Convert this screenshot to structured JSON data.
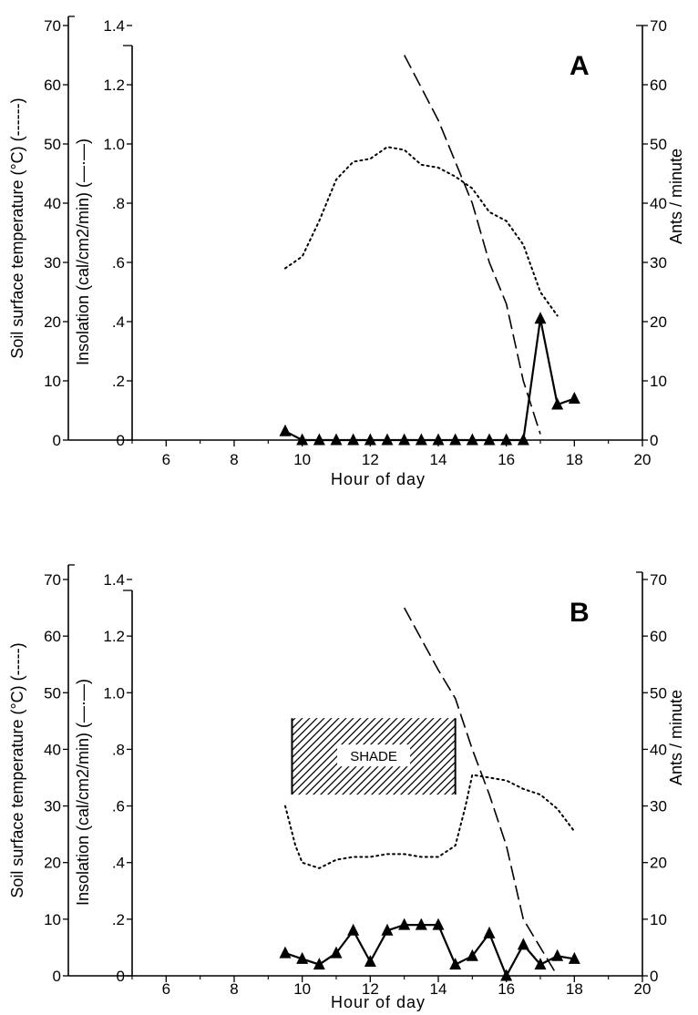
{
  "chart_data": [
    {
      "type": "line",
      "panel": "A",
      "xlabel": "Hour of day",
      "ylabel_left_outer": "Soil surface temperature (°C) (------)",
      "ylabel_left_inner": "Insolation (cal/cm2/min) (—·—)",
      "ylabel_right": "Ants / minute",
      "xlim": [
        5,
        20
      ],
      "ylim_temperature": [
        0,
        70
      ],
      "ylim_insolation": [
        0,
        1.4
      ],
      "ylim_ants": [
        0,
        70
      ],
      "x_ticks": [
        6,
        8,
        10,
        12,
        14,
        16,
        18,
        20
      ],
      "x_tick_labels": [
        "6",
        "8",
        "10",
        "12",
        "14",
        "16",
        "18",
        "20"
      ],
      "temperature_ticks": [
        0,
        10,
        20,
        30,
        40,
        50,
        60,
        70
      ],
      "temperature_tick_labels": [
        "0",
        "10",
        "20",
        "30",
        "40",
        "50",
        "60",
        "70"
      ],
      "insolation_ticks": [
        0,
        0.2,
        0.4,
        0.6,
        0.8,
        1.0,
        1.2,
        1.4
      ],
      "insolation_tick_labels": [
        "0",
        ".2",
        ".4",
        ".6",
        ".8",
        "1.0",
        "1.2",
        "1.4"
      ],
      "ants_ticks": [
        0,
        10,
        20,
        30,
        40,
        50,
        60,
        70
      ],
      "ants_tick_labels": [
        "0",
        "10",
        "20",
        "30",
        "40",
        "50",
        "60",
        "70"
      ],
      "series": [
        {
          "axis": "temperature",
          "style": "dotted",
          "x": [
            9.5,
            10,
            10.5,
            11,
            11.5,
            12,
            12.5,
            13,
            13.5,
            14,
            14.5,
            15,
            15.5,
            16,
            16.5,
            17,
            17.5
          ],
          "y": [
            29,
            31,
            37,
            44,
            47,
            47.5,
            49.5,
            49,
            46.5,
            46,
            44.5,
            42.5,
            38.5,
            37,
            33,
            25,
            21
          ]
        },
        {
          "axis": "insolation",
          "style": "dashed",
          "x": [
            13,
            14,
            15,
            15.5,
            16,
            16.5,
            17
          ],
          "y": [
            1.3,
            1.08,
            0.8,
            0.6,
            0.46,
            0.2,
            0.02
          ]
        },
        {
          "axis": "ants",
          "style": "solid-triangle",
          "x": [
            9.5,
            10,
            10.5,
            11,
            11.5,
            12,
            12.5,
            13,
            13.5,
            14,
            14.5,
            15,
            15.5,
            16,
            16.5,
            17,
            17.5,
            18
          ],
          "y": [
            1.5,
            0,
            0,
            0,
            0,
            0,
            0,
            0,
            0,
            0,
            0,
            0,
            0,
            0,
            0,
            20.5,
            6,
            7
          ]
        }
      ]
    },
    {
      "type": "line",
      "panel": "B",
      "xlabel": "Hour of day",
      "ylabel_left_outer": "Soil surface temperature (°C) (-----)",
      "ylabel_left_inner": "Insolation (cal/cm2/min) (—·—)",
      "ylabel_right": "Ants / minute",
      "xlim": [
        5,
        20
      ],
      "ylim_temperature": [
        0,
        70
      ],
      "ylim_insolation": [
        0,
        1.4
      ],
      "ylim_ants": [
        0,
        70
      ],
      "x_ticks": [
        6,
        8,
        10,
        12,
        14,
        16,
        18,
        20
      ],
      "x_tick_labels": [
        "6",
        "8",
        "10",
        "12",
        "14",
        "16",
        "18",
        "20"
      ],
      "temperature_ticks": [
        0,
        10,
        20,
        30,
        40,
        50,
        60,
        70
      ],
      "temperature_tick_labels": [
        "0",
        "10",
        "20",
        "30",
        "40",
        "50",
        "60",
        "70"
      ],
      "insolation_ticks": [
        0,
        0.2,
        0.4,
        0.6,
        0.8,
        1.0,
        1.2,
        1.4
      ],
      "insolation_tick_labels": [
        "0",
        ".2",
        ".4",
        ".6",
        ".8",
        "1.0",
        "1.2",
        "1.4"
      ],
      "ants_ticks": [
        0,
        10,
        20,
        30,
        40,
        50,
        60,
        70
      ],
      "ants_tick_labels": [
        "0",
        "10",
        "20",
        "30",
        "40",
        "50",
        "60",
        "70"
      ],
      "annotation": {
        "label": "SHADE",
        "x_range": [
          9.7,
          14.5
        ],
        "temperature_range": [
          32,
          45.5
        ]
      },
      "series": [
        {
          "axis": "temperature",
          "style": "dotted",
          "x": [
            9.5,
            9.8,
            10,
            10.5,
            11,
            11.5,
            12,
            12.5,
            13,
            13.5,
            14,
            14.5,
            14.8,
            15,
            15.5,
            16,
            16.5,
            17,
            17.5,
            18
          ],
          "y": [
            30,
            23,
            20,
            19,
            20.5,
            21,
            21,
            21.5,
            21.5,
            21,
            21,
            23,
            30,
            35.5,
            35,
            34.5,
            33,
            32,
            29.5,
            25.5
          ]
        },
        {
          "axis": "insolation",
          "style": "dashed",
          "x": [
            13,
            13.5,
            14,
            14.5,
            15,
            15.5,
            16,
            16.5,
            17,
            17.5
          ],
          "y": [
            1.3,
            1.19,
            1.08,
            0.98,
            0.8,
            0.64,
            0.46,
            0.2,
            0.1,
            0
          ]
        },
        {
          "axis": "ants",
          "style": "solid-triangle",
          "x": [
            9.5,
            10,
            10.5,
            11,
            11.5,
            12,
            12.5,
            13,
            13.5,
            14,
            14.5,
            15,
            15.5,
            16,
            16.5,
            17,
            17.5,
            18
          ],
          "y": [
            4,
            3,
            2,
            4,
            8,
            2.5,
            8,
            9,
            9,
            9,
            2,
            3.5,
            7.5,
            0,
            5.5,
            2,
            3.5,
            3
          ]
        }
      ]
    }
  ]
}
